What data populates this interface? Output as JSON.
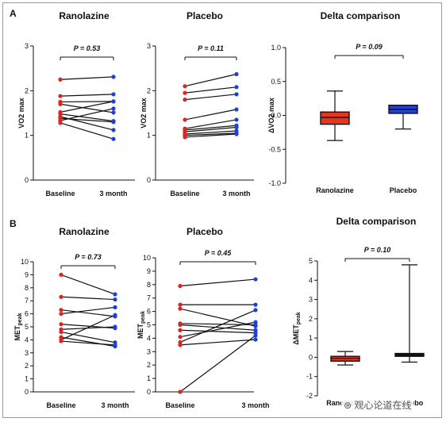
{
  "panel_labels": [
    "A",
    "B"
  ],
  "watermark": "⊛ 观心论道在线",
  "chart_data": [
    {
      "id": "a1",
      "type": "paired-line",
      "title": "Ranolazine",
      "ylabel": "VO2 max",
      "ylim": [
        0,
        3
      ],
      "yticks": [
        0,
        1,
        2,
        3
      ],
      "categories": [
        "Baseline",
        "3 month"
      ],
      "p_label": "P = 0.53",
      "start_color": "#d62728",
      "end_color": "#1f3fd6",
      "pairs": [
        [
          2.25,
          2.31
        ],
        [
          1.88,
          1.92
        ],
        [
          1.75,
          1.76
        ],
        [
          1.7,
          1.51
        ],
        [
          1.52,
          1.76
        ],
        [
          1.48,
          1.32
        ],
        [
          1.42,
          1.12
        ],
        [
          1.38,
          1.3
        ],
        [
          1.33,
          1.6
        ],
        [
          1.28,
          0.92
        ]
      ]
    },
    {
      "id": "a2",
      "type": "paired-line",
      "title": "Placebo",
      "ylabel": "VO2 max",
      "ylim": [
        0,
        3
      ],
      "yticks": [
        0,
        1,
        2,
        3
      ],
      "categories": [
        "Baseline",
        "3 month"
      ],
      "p_label": "P = 0.11",
      "start_color": "#d62728",
      "end_color": "#1f3fd6",
      "pairs": [
        [
          2.1,
          2.37
        ],
        [
          1.95,
          2.08
        ],
        [
          1.8,
          1.92
        ],
        [
          1.35,
          1.58
        ],
        [
          1.15,
          1.35
        ],
        [
          1.12,
          1.22
        ],
        [
          1.08,
          1.18
        ],
        [
          1.03,
          1.1
        ],
        [
          1.0,
          1.05
        ],
        [
          0.96,
          1.03
        ]
      ]
    },
    {
      "id": "a3",
      "type": "box",
      "title": "Delta comparison",
      "ylabel": "ΔVO2 max",
      "ylim": [
        -1,
        1
      ],
      "yticks": [
        -1,
        -0.5,
        0,
        0.5,
        1
      ],
      "ytick_labels": [
        "-1.0",
        "-0.5",
        "0.0",
        "0.5",
        "1.0"
      ],
      "categories": [
        "Ranolazine",
        "Placebo"
      ],
      "p_label": "P = 0.09",
      "boxes": [
        {
          "color": "#e8351f",
          "min": -0.37,
          "q1": -0.13,
          "median": -0.03,
          "q3": 0.05,
          "max": 0.36
        },
        {
          "color": "#1e3fe0",
          "min": -0.2,
          "q1": 0.03,
          "median": 0.09,
          "q3": 0.15,
          "max": 0.15
        }
      ]
    },
    {
      "id": "b1",
      "type": "paired-line",
      "title": "Ranolazine",
      "ylabel": "MET",
      "ylabel_sub": "peak",
      "ylim": [
        0,
        10
      ],
      "yticks": [
        0,
        1,
        2,
        3,
        4,
        5,
        6,
        7,
        8,
        9,
        10
      ],
      "categories": [
        "Baseline",
        "3 month"
      ],
      "p_label": "P = 0.73",
      "start_color": "#d62728",
      "end_color": "#1f3fd6",
      "pairs": [
        [
          9.0,
          7.5
        ],
        [
          7.3,
          7.1
        ],
        [
          6.3,
          5.8
        ],
        [
          6.0,
          6.5
        ],
        [
          5.2,
          4.9
        ],
        [
          4.8,
          5.0
        ],
        [
          4.6,
          3.8
        ],
        [
          4.2,
          3.5
        ],
        [
          4.0,
          5.9
        ],
        [
          3.9,
          3.6
        ]
      ]
    },
    {
      "id": "b2",
      "type": "paired-line",
      "title": "Placebo",
      "ylabel": "MET",
      "ylabel_sub": "peak",
      "ylim": [
        0,
        10
      ],
      "yticks": [
        0,
        1,
        2,
        3,
        4,
        5,
        6,
        7,
        8,
        9,
        10
      ],
      "categories": [
        "Baseline",
        "3 month"
      ],
      "p_label": "P = 0.45",
      "start_color": "#d62728",
      "end_color": "#1f3fd6",
      "pairs": [
        [
          7.9,
          8.4
        ],
        [
          6.5,
          6.5
        ],
        [
          6.2,
          4.9
        ],
        [
          5.1,
          5.0
        ],
        [
          5.0,
          4.6
        ],
        [
          4.6,
          4.4
        ],
        [
          4.1,
          5.2
        ],
        [
          3.7,
          6.1
        ],
        [
          3.5,
          3.9
        ],
        [
          0.0,
          4.2
        ]
      ]
    },
    {
      "id": "b3",
      "type": "box",
      "title": "Delta comparison",
      "ylabel": "ΔMET",
      "ylabel_sub": "peak",
      "ylim": [
        -2,
        5
      ],
      "yticks": [
        -2,
        -1,
        0,
        1,
        2,
        3,
        4,
        5
      ],
      "categories": [
        "Ranolazine",
        "Placebo"
      ],
      "p_label": "P = 0.10",
      "boxes": [
        {
          "color": "#e8351f",
          "min": -0.4,
          "q1": -0.2,
          "median": -0.05,
          "q3": 0.05,
          "max": 0.3
        },
        {
          "color": "#111111",
          "min": -0.25,
          "q1": 0.05,
          "median": 0.12,
          "q3": 0.2,
          "max": 4.8
        }
      ]
    }
  ]
}
